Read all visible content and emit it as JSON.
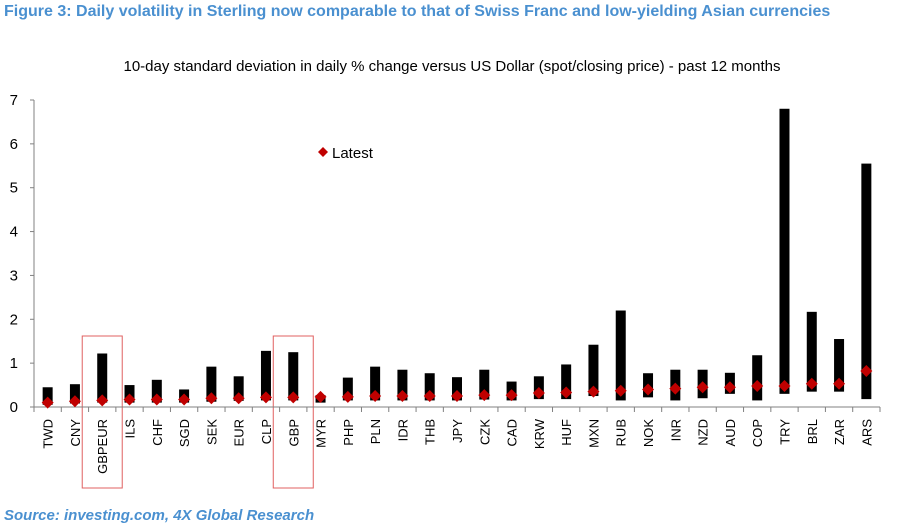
{
  "figure_title": "Figure 3: Daily volatility in Sterling now comparable to that of Swiss Franc and low-yielding Asian currencies",
  "source": "Source: investing.com, 4X Global Research",
  "colors": {
    "title": "#4a90d0",
    "range_bar": "#000000",
    "marker": "#c00000",
    "highlight_box": "#e06060",
    "axis": "#808080"
  },
  "chart_data": {
    "type": "bar",
    "title": "10-day standard deviation in daily % change  versus US Dollar (spot/closing price) - past 12 months",
    "xlabel": "",
    "ylabel": "",
    "ylim": [
      0,
      7
    ],
    "yticks": [
      0,
      1,
      2,
      3,
      4,
      5,
      6,
      7
    ],
    "grid": false,
    "legend_position": "upper-middle",
    "categories": [
      "TWD",
      "CNY",
      "GBPEUR",
      "ILS",
      "CHF",
      "SGD",
      "SEK",
      "EUR",
      "CLP",
      "GBP",
      "MYR",
      "PHP",
      "PLN",
      "IDR",
      "THB",
      "JPY",
      "CZK",
      "CAD",
      "KRW",
      "HUF",
      "MXN",
      "RUB",
      "NOK",
      "INR",
      "NZD",
      "AUD",
      "COP",
      "TRY",
      "BRL",
      "ZAR",
      "ARS"
    ],
    "highlighted_categories": [
      "GBPEUR",
      "GBP"
    ],
    "series": [
      {
        "kind": "range",
        "low": [
          0.05,
          0.08,
          0.1,
          0.1,
          0.1,
          0.1,
          0.12,
          0.14,
          0.15,
          0.15,
          0.1,
          0.15,
          0.15,
          0.15,
          0.15,
          0.15,
          0.17,
          0.15,
          0.18,
          0.18,
          0.25,
          0.15,
          0.22,
          0.15,
          0.2,
          0.3,
          0.15,
          0.3,
          0.35,
          0.35,
          0.18
        ],
        "high": [
          0.45,
          0.52,
          1.22,
          0.5,
          0.62,
          0.4,
          0.92,
          0.7,
          1.28,
          1.25,
          0.27,
          0.67,
          0.92,
          0.85,
          0.77,
          0.68,
          0.85,
          0.58,
          0.7,
          0.97,
          1.42,
          2.2,
          0.77,
          0.85,
          0.85,
          0.78,
          1.18,
          6.8,
          2.17,
          1.55,
          5.55
        ]
      },
      {
        "name": "Latest",
        "kind": "marker",
        "values": [
          0.1,
          0.13,
          0.15,
          0.17,
          0.17,
          0.17,
          0.2,
          0.2,
          0.22,
          0.22,
          0.23,
          0.23,
          0.25,
          0.25,
          0.25,
          0.25,
          0.27,
          0.27,
          0.32,
          0.33,
          0.35,
          0.37,
          0.4,
          0.42,
          0.45,
          0.45,
          0.48,
          0.48,
          0.53,
          0.53,
          0.82
        ]
      }
    ]
  }
}
